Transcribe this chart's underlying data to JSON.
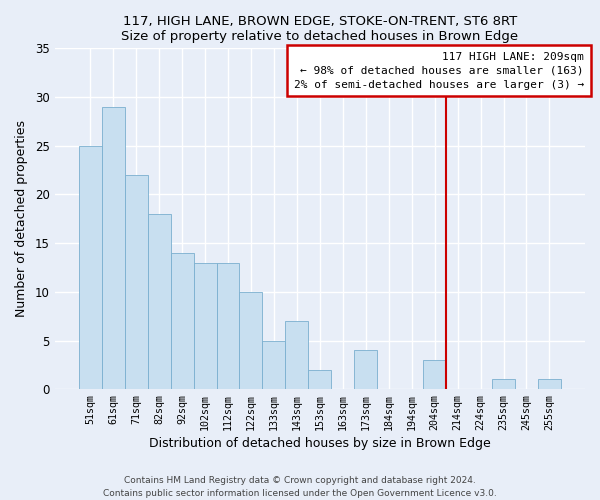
{
  "title1": "117, HIGH LANE, BROWN EDGE, STOKE-ON-TRENT, ST6 8RT",
  "title2": "Size of property relative to detached houses in Brown Edge",
  "xlabel": "Distribution of detached houses by size in Brown Edge",
  "ylabel": "Number of detached properties",
  "bar_labels": [
    "51sqm",
    "61sqm",
    "71sqm",
    "82sqm",
    "92sqm",
    "102sqm",
    "112sqm",
    "122sqm",
    "133sqm",
    "143sqm",
    "153sqm",
    "163sqm",
    "173sqm",
    "184sqm",
    "194sqm",
    "204sqm",
    "214sqm",
    "224sqm",
    "235sqm",
    "245sqm",
    "255sqm"
  ],
  "bar_heights": [
    25,
    29,
    22,
    18,
    14,
    13,
    13,
    10,
    5,
    7,
    2,
    0,
    4,
    0,
    0,
    3,
    0,
    0,
    1,
    0,
    1
  ],
  "bar_color": "#c8dff0",
  "bar_edge_color": "#7aafcf",
  "ylim": [
    0,
    35
  ],
  "yticks": [
    0,
    5,
    10,
    15,
    20,
    25,
    30,
    35
  ],
  "vline_x": 15.5,
  "vline_color": "#cc0000",
  "annotation_title": "117 HIGH LANE: 209sqm",
  "annotation_line1": "← 98% of detached houses are smaller (163)",
  "annotation_line2": "2% of semi-detached houses are larger (3) →",
  "footer1": "Contains HM Land Registry data © Crown copyright and database right 2024.",
  "footer2": "Contains public sector information licensed under the Open Government Licence v3.0.",
  "background_color": "#e8eef8",
  "grid_color": "#ffffff"
}
